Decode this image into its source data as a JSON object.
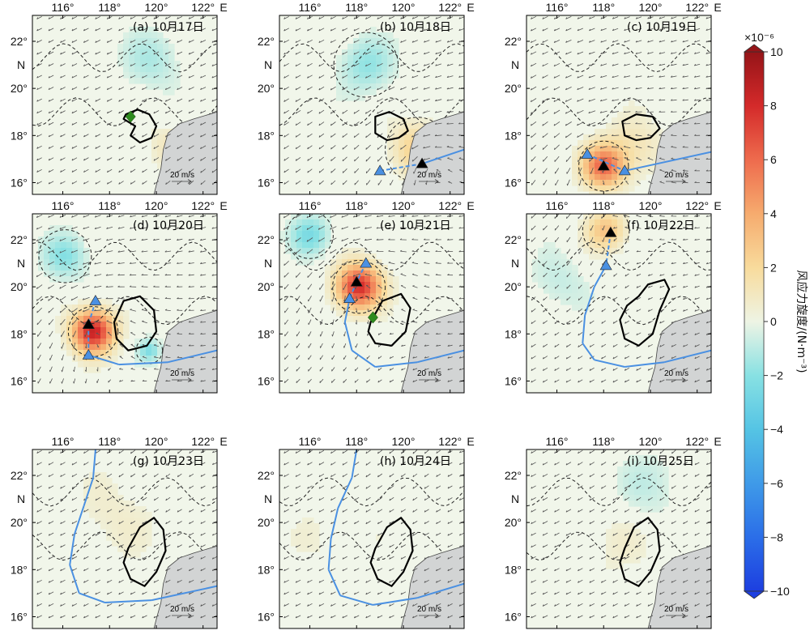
{
  "chart_data": {
    "type": "map-panels",
    "grid": {
      "rows": 3,
      "cols": 3
    },
    "lon_ticks": [
      "116°",
      "118°",
      "120°",
      "122°"
    ],
    "lon_values": [
      116,
      118,
      120,
      122
    ],
    "lon_unit": "E",
    "lat_ticks": [
      "16°",
      "18°",
      "20°",
      "22°"
    ],
    "lat_values": [
      16,
      18,
      20,
      22
    ],
    "lat_unit": "N",
    "lon_range": [
      114.7,
      122.6
    ],
    "lat_range": [
      15.5,
      23.1
    ],
    "wind_scale_label": "20 m/s",
    "panels": [
      {
        "label": "(a) 10月17日",
        "vort_blobs": [
          {
            "lon": 119.8,
            "lat": 21.2,
            "amp": -1.2,
            "sigma": 1.2
          },
          {
            "lon": 120.5,
            "lat": 17.5,
            "amp": 1.0,
            "sigma": 0.9
          }
        ],
        "wind_vortex": {
          "lon": 123.5,
          "lat": 16.0,
          "strength": 0.4
        },
        "markers": [
          {
            "shape": "diamond",
            "color": "#2e8b1e",
            "lon": 118.9,
            "lat": 18.8
          }
        ],
        "track": []
      },
      {
        "label": "(b) 10月18日",
        "vort_blobs": [
          {
            "lon": 120.6,
            "lat": 17.4,
            "amp": 2.4,
            "sigma": 1.1
          },
          {
            "lon": 118.4,
            "lat": 21.0,
            "amp": -1.8,
            "sigma": 1.1
          }
        ],
        "wind_vortex": {
          "lon": 121.0,
          "lat": 16.8,
          "strength": 0.8
        },
        "markers": [
          {
            "shape": "triangle",
            "color": "#000000",
            "lon": 120.8,
            "lat": 16.8
          },
          {
            "shape": "triangle",
            "color": "#4a90e2",
            "lon": 119.0,
            "lat": 16.5
          }
        ],
        "track": [
          {
            "lon": 119.0,
            "lat": 16.5,
            "style": "dashed"
          },
          {
            "lon": 120.8,
            "lat": 16.8,
            "style": "dashed"
          },
          {
            "lon": 122.6,
            "lat": 17.4,
            "style": "solid"
          }
        ]
      },
      {
        "label": "(c) 10月19日",
        "vort_blobs": [
          {
            "lon": 118.0,
            "lat": 16.7,
            "amp": 6.0,
            "sigma": 0.85
          },
          {
            "lon": 119.2,
            "lat": 17.5,
            "amp": 1.4,
            "sigma": 1.2
          }
        ],
        "wind_vortex": {
          "lon": 118.0,
          "lat": 16.7,
          "strength": 1.0
        },
        "markers": [
          {
            "shape": "triangle",
            "color": "#4a90e2",
            "lon": 117.3,
            "lat": 17.2
          },
          {
            "shape": "triangle",
            "color": "#000000",
            "lon": 118.0,
            "lat": 16.7
          },
          {
            "shape": "triangle",
            "color": "#4a90e2",
            "lon": 118.9,
            "lat": 16.5
          }
        ],
        "track": [
          {
            "lon": 117.3,
            "lat": 17.2,
            "style": "dashed"
          },
          {
            "lon": 118.9,
            "lat": 16.5,
            "style": "dashed"
          },
          {
            "lon": 122.6,
            "lat": 17.3,
            "style": "solid"
          }
        ]
      },
      {
        "label": "(d) 10月20日",
        "vort_blobs": [
          {
            "lon": 117.3,
            "lat": 18.1,
            "amp": 8.5,
            "sigma": 0.85
          },
          {
            "lon": 116.1,
            "lat": 21.3,
            "amp": -2.0,
            "sigma": 0.9
          },
          {
            "lon": 119.7,
            "lat": 17.3,
            "amp": -2.2,
            "sigma": 0.45
          }
        ],
        "wind_vortex": {
          "lon": 117.3,
          "lat": 18.2,
          "strength": 1.0
        },
        "markers": [
          {
            "shape": "triangle",
            "color": "#4a90e2",
            "lon": 117.4,
            "lat": 19.4
          },
          {
            "shape": "triangle",
            "color": "#000000",
            "lon": 117.1,
            "lat": 18.4
          },
          {
            "shape": "triangle",
            "color": "#4a90e2",
            "lon": 117.1,
            "lat": 17.1
          }
        ],
        "track": [
          {
            "lon": 117.4,
            "lat": 19.4,
            "style": "dashed"
          },
          {
            "lon": 117.1,
            "lat": 18.4,
            "style": "dashed"
          },
          {
            "lon": 117.1,
            "lat": 17.1,
            "style": "dashed"
          },
          {
            "lon": 118.4,
            "lat": 16.7,
            "style": "solid"
          },
          {
            "lon": 120.5,
            "lat": 16.8,
            "style": "solid"
          },
          {
            "lon": 122.6,
            "lat": 17.3,
            "style": "solid"
          }
        ]
      },
      {
        "label": "(e) 10月21日",
        "vort_blobs": [
          {
            "lon": 118.1,
            "lat": 20.0,
            "amp": 8.0,
            "sigma": 0.9
          },
          {
            "lon": 116.0,
            "lat": 22.2,
            "amp": -2.4,
            "sigma": 0.8
          }
        ],
        "wind_vortex": {
          "lon": 118.1,
          "lat": 20.1,
          "strength": 1.0
        },
        "markers": [
          {
            "shape": "triangle",
            "color": "#4a90e2",
            "lon": 118.4,
            "lat": 21.0
          },
          {
            "shape": "triangle",
            "color": "#000000",
            "lon": 118.0,
            "lat": 20.2
          },
          {
            "shape": "triangle",
            "color": "#4a90e2",
            "lon": 117.7,
            "lat": 19.5
          },
          {
            "shape": "diamond",
            "color": "#2e8b1e",
            "lon": 118.7,
            "lat": 18.7
          }
        ],
        "track": [
          {
            "lon": 118.4,
            "lat": 21.0,
            "style": "dashed"
          },
          {
            "lon": 118.0,
            "lat": 20.2,
            "style": "dashed"
          },
          {
            "lon": 117.7,
            "lat": 19.5,
            "style": "dashed"
          },
          {
            "lon": 117.5,
            "lat": 18.5,
            "style": "solid"
          },
          {
            "lon": 117.8,
            "lat": 17.3,
            "style": "solid"
          },
          {
            "lon": 118.8,
            "lat": 16.6,
            "style": "solid"
          },
          {
            "lon": 120.6,
            "lat": 16.8,
            "style": "solid"
          },
          {
            "lon": 122.6,
            "lat": 17.3,
            "style": "solid"
          }
        ]
      },
      {
        "label": "(f) 10月22日",
        "vort_blobs": [
          {
            "lon": 118.1,
            "lat": 22.4,
            "amp": 3.0,
            "sigma": 0.8
          },
          {
            "lon": 116.0,
            "lat": 20.2,
            "amp": -0.8,
            "sigma": 1.2
          }
        ],
        "wind_vortex": {
          "lon": 118.2,
          "lat": 23.0,
          "strength": 0.7
        },
        "markers": [
          {
            "shape": "triangle",
            "color": "#000000",
            "lon": 118.3,
            "lat": 22.3
          },
          {
            "shape": "triangle",
            "color": "#4a90e2",
            "lon": 118.1,
            "lat": 20.9
          }
        ],
        "track": [
          {
            "lon": 118.3,
            "lat": 22.3,
            "style": "dashed"
          },
          {
            "lon": 118.1,
            "lat": 20.9,
            "style": "dashed"
          },
          {
            "lon": 117.6,
            "lat": 20.0,
            "style": "solid"
          },
          {
            "lon": 117.2,
            "lat": 18.8,
            "style": "solid"
          },
          {
            "lon": 117.1,
            "lat": 17.6,
            "style": "solid"
          },
          {
            "lon": 117.6,
            "lat": 16.9,
            "style": "solid"
          },
          {
            "lon": 118.9,
            "lat": 16.6,
            "style": "solid"
          },
          {
            "lon": 120.6,
            "lat": 16.8,
            "style": "solid"
          },
          {
            "lon": 122.6,
            "lat": 17.3,
            "style": "solid"
          }
        ]
      },
      {
        "label": "(g) 10月23日",
        "vort_blobs": [
          {
            "lon": 118.2,
            "lat": 20.2,
            "amp": 0.6,
            "sigma": 1.8
          }
        ],
        "wind_vortex": {
          "lon": 121.5,
          "lat": 24.0,
          "strength": 0.3
        },
        "markers": [],
        "track": [
          {
            "lon": 117.4,
            "lat": 23.1,
            "style": "solid"
          },
          {
            "lon": 117.3,
            "lat": 21.9,
            "style": "solid"
          },
          {
            "lon": 116.9,
            "lat": 20.7,
            "style": "solid"
          },
          {
            "lon": 116.5,
            "lat": 19.5,
            "style": "solid"
          },
          {
            "lon": 116.3,
            "lat": 18.2,
            "style": "solid"
          },
          {
            "lon": 116.7,
            "lat": 17.0,
            "style": "solid"
          },
          {
            "lon": 117.8,
            "lat": 16.6,
            "style": "solid"
          },
          {
            "lon": 119.8,
            "lat": 16.7,
            "style": "solid"
          },
          {
            "lon": 122.6,
            "lat": 17.3,
            "style": "solid"
          }
        ]
      },
      {
        "label": "(h) 10月24日",
        "vort_blobs": [
          {
            "lon": 117.0,
            "lat": 19.5,
            "amp": 0.4,
            "sigma": 1.8
          }
        ],
        "wind_vortex": {
          "lon": 121.5,
          "lat": 24.0,
          "strength": 0.3
        },
        "markers": [],
        "track": [
          {
            "lon": 118.0,
            "lat": 23.1,
            "style": "solid"
          },
          {
            "lon": 117.8,
            "lat": 21.9,
            "style": "solid"
          },
          {
            "lon": 117.2,
            "lat": 20.6,
            "style": "solid"
          },
          {
            "lon": 116.9,
            "lat": 19.3,
            "style": "solid"
          },
          {
            "lon": 116.8,
            "lat": 18.0,
            "style": "solid"
          },
          {
            "lon": 117.3,
            "lat": 16.9,
            "style": "solid"
          },
          {
            "lon": 118.7,
            "lat": 16.5,
            "style": "solid"
          },
          {
            "lon": 120.6,
            "lat": 16.8,
            "style": "solid"
          },
          {
            "lon": 122.6,
            "lat": 17.4,
            "style": "solid"
          }
        ]
      },
      {
        "label": "(i) 10月25日",
        "vort_blobs": [
          {
            "lon": 120.0,
            "lat": 21.6,
            "amp": -0.8,
            "sigma": 1.4
          },
          {
            "lon": 118.5,
            "lat": 19.0,
            "amp": 0.5,
            "sigma": 1.5
          }
        ],
        "wind_vortex": {
          "lon": 121.5,
          "lat": 24.0,
          "strength": 0.3
        },
        "markers": [],
        "track": []
      }
    ],
    "eddy_contours": [
      [
        [
          118.7,
          18.9
        ],
        [
          119.2,
          19.1
        ],
        [
          119.7,
          18.9
        ],
        [
          120.0,
          18.4
        ],
        [
          119.8,
          17.9
        ],
        [
          119.3,
          17.7
        ],
        [
          118.9,
          18.0
        ],
        [
          119.1,
          18.4
        ],
        [
          118.6,
          18.7
        ]
      ],
      [
        [
          118.8,
          18.8
        ],
        [
          119.4,
          19.0
        ],
        [
          120.0,
          18.7
        ],
        [
          120.2,
          18.2
        ],
        [
          119.8,
          17.9
        ],
        [
          119.3,
          17.8
        ],
        [
          118.8,
          18.1
        ]
      ],
      [
        [
          118.8,
          18.6
        ],
        [
          119.4,
          18.9
        ],
        [
          120.1,
          18.8
        ],
        [
          120.4,
          18.3
        ],
        [
          120.0,
          17.9
        ],
        [
          119.4,
          17.8
        ],
        [
          118.9,
          18.0
        ]
      ],
      [
        [
          118.2,
          18.5
        ],
        [
          118.6,
          19.4
        ],
        [
          119.3,
          19.6
        ],
        [
          119.9,
          19.0
        ],
        [
          120.0,
          18.1
        ],
        [
          119.6,
          17.5
        ],
        [
          118.8,
          17.3
        ],
        [
          118.3,
          17.8
        ]
      ],
      [
        [
          118.6,
          18.5
        ],
        [
          119.1,
          19.4
        ],
        [
          119.9,
          19.7
        ],
        [
          120.3,
          19.1
        ],
        [
          120.1,
          18.1
        ],
        [
          119.5,
          17.5
        ],
        [
          118.8,
          17.6
        ],
        [
          118.5,
          18.1
        ]
      ],
      [
        [
          119.5,
          19.6
        ],
        [
          119.9,
          20.1
        ],
        [
          120.6,
          20.3
        ],
        [
          120.8,
          19.9
        ],
        [
          120.4,
          19.0
        ],
        [
          120.1,
          18.0
        ],
        [
          119.5,
          17.5
        ],
        [
          118.9,
          17.8
        ],
        [
          118.7,
          18.6
        ],
        [
          119.0,
          19.2
        ]
      ],
      [
        [
          118.8,
          18.9
        ],
        [
          119.3,
          19.8
        ],
        [
          119.9,
          20.2
        ],
        [
          120.3,
          19.7
        ],
        [
          120.4,
          18.8
        ],
        [
          120.0,
          17.9
        ],
        [
          119.5,
          17.3
        ],
        [
          118.9,
          17.6
        ],
        [
          118.6,
          18.3
        ]
      ],
      [
        [
          118.8,
          18.9
        ],
        [
          119.3,
          19.8
        ],
        [
          119.9,
          20.2
        ],
        [
          120.3,
          19.7
        ],
        [
          120.4,
          18.8
        ],
        [
          120.0,
          17.9
        ],
        [
          119.5,
          17.3
        ],
        [
          118.9,
          17.6
        ],
        [
          118.6,
          18.3
        ]
      ],
      [
        [
          118.9,
          18.9
        ],
        [
          119.3,
          19.8
        ],
        [
          119.9,
          20.2
        ],
        [
          120.3,
          19.7
        ],
        [
          120.4,
          18.8
        ],
        [
          120.0,
          17.9
        ],
        [
          119.5,
          17.3
        ],
        [
          118.9,
          17.6
        ],
        [
          118.7,
          18.3
        ]
      ]
    ],
    "land": [
      [
        122.6,
        19.0
      ],
      [
        121.6,
        18.7
      ],
      [
        121.0,
        18.5
      ],
      [
        120.5,
        18.1
      ],
      [
        120.3,
        17.4
      ],
      [
        120.2,
        16.6
      ],
      [
        120.0,
        15.9
      ],
      [
        119.9,
        15.5
      ],
      [
        122.6,
        15.5
      ]
    ],
    "colorbar": {
      "title": "风应力旋度/(N·m⁻³)",
      "exponent": "×10⁻⁶",
      "range": [
        -10,
        10
      ],
      "ticks": [
        10,
        8,
        6,
        4,
        2,
        0,
        -2,
        -4,
        -6,
        -8,
        -10
      ],
      "tick_labels": [
        "10",
        "8",
        "6",
        "4",
        "2",
        "0",
        "−2",
        "−4",
        "−6",
        "−8",
        "−10"
      ],
      "colors": [
        [
          -10,
          "#1d3fe0"
        ],
        [
          -8,
          "#2b6ee8"
        ],
        [
          -6,
          "#3f9ae8"
        ],
        [
          -4,
          "#55c4e4"
        ],
        [
          -2,
          "#88e1e3"
        ],
        [
          0,
          "#eef4e4"
        ],
        [
          2,
          "#f8db9c"
        ],
        [
          4,
          "#f6ab6e"
        ],
        [
          6,
          "#ee6b4d"
        ],
        [
          8,
          "#d42a2a"
        ],
        [
          10,
          "#951418"
        ]
      ]
    }
  }
}
